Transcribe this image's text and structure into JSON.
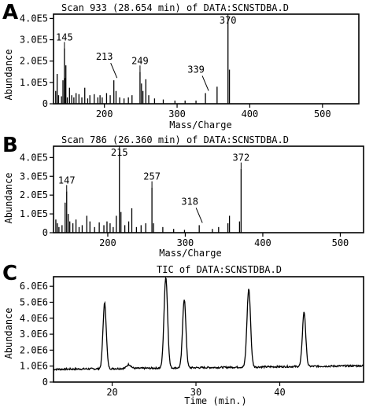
{
  "panels": [
    {
      "letter": "A",
      "title": "Scan 933 (28.654 min) of DATA:SCNSTDBA.D",
      "xlabel": "Mass/Charge",
      "ylabel": "Abundance"
    },
    {
      "letter": "B",
      "title": "Scan 786 (26.360 min) of DATA:SCNSTDBA.D",
      "xlabel": "Mass/Charge",
      "ylabel": "Abundance"
    },
    {
      "letter": "C",
      "title": "TIC of DATA:SCNSTDBA.D",
      "xlabel": "Time (min.)",
      "ylabel": "Abundance"
    }
  ],
  "chart_data": [
    {
      "type": "bar",
      "title": "Scan 933 (28.654 min) of DATA:SCNSTDBA.D",
      "xlabel": "Mass/Charge",
      "ylabel": "Abundance",
      "xlim": [
        130,
        550
      ],
      "ylim": [
        0,
        420000
      ],
      "x_ticks": [
        200,
        300,
        400,
        500
      ],
      "x_tick_labels": [
        "200",
        "300",
        "400",
        "500"
      ],
      "y_ticks": [
        0,
        100000,
        200000,
        300000,
        400000
      ],
      "y_tick_labels": [
        "0",
        "1.0E5",
        "2.0E5",
        "3.0E5",
        "4.0E5"
      ],
      "peaks": [
        [
          133,
          60000
        ],
        [
          135,
          140000
        ],
        [
          137,
          40000
        ],
        [
          141,
          35000
        ],
        [
          143,
          110000
        ],
        [
          145,
          260000
        ],
        [
          146,
          120000
        ],
        [
          147,
          180000
        ],
        [
          149,
          30000
        ],
        [
          152,
          75000
        ],
        [
          155,
          40000
        ],
        [
          158,
          30000
        ],
        [
          161,
          50000
        ],
        [
          165,
          45000
        ],
        [
          169,
          30000
        ],
        [
          173,
          75000
        ],
        [
          177,
          25000
        ],
        [
          180,
          40000
        ],
        [
          186,
          45000
        ],
        [
          191,
          30000
        ],
        [
          194,
          40000
        ],
        [
          197,
          30000
        ],
        [
          203,
          50000
        ],
        [
          208,
          40000
        ],
        [
          213,
          110000
        ],
        [
          216,
          60000
        ],
        [
          221,
          30000
        ],
        [
          227,
          25000
        ],
        [
          233,
          30000
        ],
        [
          238,
          40000
        ],
        [
          249,
          150000
        ],
        [
          251,
          95000
        ],
        [
          253,
          60000
        ],
        [
          257,
          115000
        ],
        [
          261,
          40000
        ],
        [
          269,
          25000
        ],
        [
          281,
          20000
        ],
        [
          297,
          15000
        ],
        [
          311,
          15000
        ],
        [
          326,
          15000
        ],
        [
          339,
          50000
        ],
        [
          355,
          80000
        ],
        [
          370,
          390000
        ],
        [
          372,
          160000
        ]
      ],
      "annotations": [
        {
          "label": "145",
          "x": 145
        },
        {
          "label": "213",
          "x": 213
        },
        {
          "label": "249",
          "x": 249
        },
        {
          "label": "339",
          "x": 339
        },
        {
          "label": "370",
          "x": 370
        }
      ]
    },
    {
      "type": "bar",
      "title": "Scan 786 (26.360 min) of DATA:SCNSTDBA.D",
      "xlabel": "Mass/Charge",
      "ylabel": "Abundance",
      "xlim": [
        130,
        530
      ],
      "ylim": [
        0,
        460000
      ],
      "x_ticks": [
        200,
        300,
        400,
        500
      ],
      "x_tick_labels": [
        "200",
        "300",
        "400",
        "500"
      ],
      "y_ticks": [
        0,
        100000,
        200000,
        300000,
        400000
      ],
      "y_tick_labels": [
        "0",
        "1.0E5",
        "2.0E5",
        "3.0E5",
        "4.0E5"
      ],
      "peaks": [
        [
          133,
          70000
        ],
        [
          135,
          50000
        ],
        [
          137,
          30000
        ],
        [
          141,
          40000
        ],
        [
          145,
          160000
        ],
        [
          147,
          220000
        ],
        [
          149,
          100000
        ],
        [
          151,
          60000
        ],
        [
          155,
          50000
        ],
        [
          159,
          70000
        ],
        [
          163,
          30000
        ],
        [
          167,
          40000
        ],
        [
          173,
          90000
        ],
        [
          177,
          60000
        ],
        [
          183,
          30000
        ],
        [
          189,
          55000
        ],
        [
          195,
          40000
        ],
        [
          199,
          60000
        ],
        [
          203,
          50000
        ],
        [
          207,
          30000
        ],
        [
          211,
          90000
        ],
        [
          215,
          430000
        ],
        [
          217,
          110000
        ],
        [
          222,
          40000
        ],
        [
          227,
          60000
        ],
        [
          231,
          130000
        ],
        [
          237,
          30000
        ],
        [
          243,
          40000
        ],
        [
          249,
          50000
        ],
        [
          257,
          240000
        ],
        [
          259,
          50000
        ],
        [
          271,
          30000
        ],
        [
          285,
          20000
        ],
        [
          299,
          15000
        ],
        [
          318,
          40000
        ],
        [
          335,
          20000
        ],
        [
          343,
          30000
        ],
        [
          355,
          50000
        ],
        [
          357,
          90000
        ],
        [
          370,
          60000
        ],
        [
          372,
          340000
        ]
      ],
      "annotations": [
        {
          "label": "147",
          "x": 147
        },
        {
          "label": "215",
          "x": 215
        },
        {
          "label": "257",
          "x": 257
        },
        {
          "label": "318",
          "x": 318
        },
        {
          "label": "372",
          "x": 372
        }
      ]
    },
    {
      "type": "line",
      "title": "TIC of DATA:SCNSTDBA.D",
      "xlabel": "Time (min.)",
      "ylabel": "Abundance",
      "xlim": [
        13,
        50
      ],
      "ylim": [
        0,
        6600000
      ],
      "x_ticks": [
        20,
        30,
        40
      ],
      "x_tick_labels": [
        "20",
        "30",
        "40"
      ],
      "y_ticks": [
        0,
        1000000,
        2000000,
        3000000,
        4000000,
        5000000,
        6000000
      ],
      "y_tick_labels": [
        "0",
        "1.0E6",
        "2.0E6",
        "3.0E6",
        "4.0E6",
        "5.0E6",
        "6.0E6"
      ],
      "baseline": 800000,
      "peaks": [
        {
          "x": 19.1,
          "y": 4900000,
          "w": 0.28
        },
        {
          "x": 22.0,
          "y": 1050000,
          "w": 0.35
        },
        {
          "x": 26.4,
          "y": 6500000,
          "w": 0.3
        },
        {
          "x": 28.6,
          "y": 5100000,
          "w": 0.28
        },
        {
          "x": 36.3,
          "y": 5700000,
          "w": 0.3
        },
        {
          "x": 42.9,
          "y": 4200000,
          "w": 0.28
        }
      ]
    }
  ]
}
